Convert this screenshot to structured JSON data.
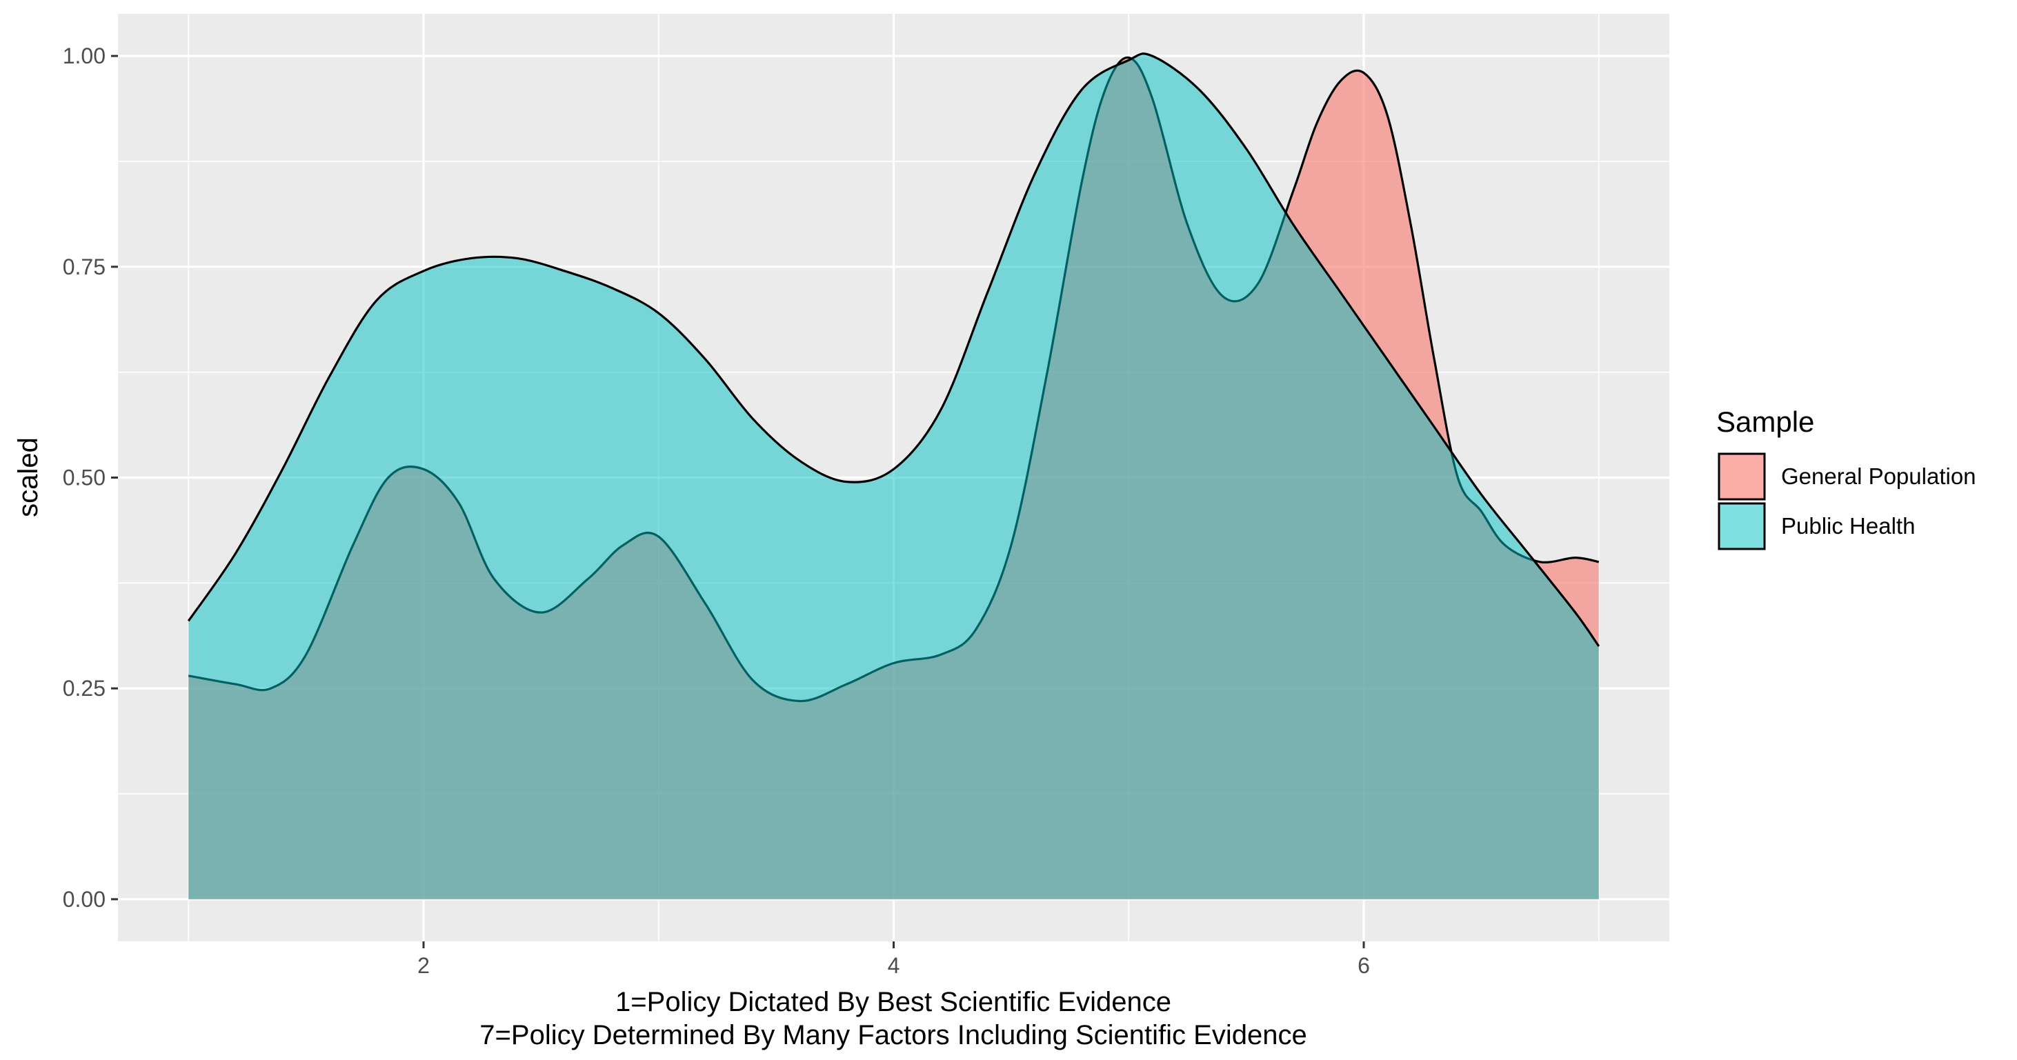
{
  "chart_data": {
    "type": "area",
    "chart_kind": "density",
    "title": "",
    "xlabel_lines": [
      "1=Policy Dictated By Best Scientific Evidence",
      "7=Policy Determined By Many Factors Including Scientific Evidence"
    ],
    "ylabel": "scaled",
    "xlim": [
      0.7,
      7.3
    ],
    "ylim": [
      -0.05,
      1.05
    ],
    "x_ticks": [
      2,
      4,
      6
    ],
    "y_ticks": [
      0,
      0.25,
      0.5,
      0.75,
      1.0
    ],
    "y_tick_labels": [
      "0.00",
      "0.25",
      "0.50",
      "0.75",
      "1.00"
    ],
    "grid": true,
    "legend": {
      "title": "Sample",
      "position": "right",
      "labels": [
        "General Population",
        "Public Health"
      ]
    },
    "series": [
      {
        "name": "General Population",
        "color": "#F8766D",
        "opacity": 0.6,
        "x": [
          1.0,
          1.2,
          1.35,
          1.5,
          1.7,
          1.85,
          2.0,
          2.15,
          2.3,
          2.5,
          2.7,
          2.85,
          3.0,
          3.2,
          3.4,
          3.6,
          3.8,
          4.0,
          4.2,
          4.35,
          4.5,
          4.65,
          4.8,
          4.9,
          5.0,
          5.1,
          5.25,
          5.4,
          5.55,
          5.7,
          5.8,
          5.9,
          6.0,
          6.1,
          6.2,
          6.3,
          6.4,
          6.5,
          6.6,
          6.75,
          6.9,
          7.0
        ],
        "values": [
          0.265,
          0.255,
          0.25,
          0.29,
          0.42,
          0.5,
          0.51,
          0.47,
          0.38,
          0.34,
          0.38,
          0.42,
          0.43,
          0.35,
          0.26,
          0.235,
          0.255,
          0.28,
          0.29,
          0.32,
          0.42,
          0.62,
          0.85,
          0.96,
          0.998,
          0.95,
          0.8,
          0.715,
          0.73,
          0.84,
          0.92,
          0.97,
          0.98,
          0.93,
          0.8,
          0.64,
          0.5,
          0.46,
          0.42,
          0.4,
          0.405,
          0.4
        ]
      },
      {
        "name": "Public Health",
        "color": "#00BFC4",
        "opacity": 0.5,
        "x": [
          1.0,
          1.2,
          1.4,
          1.6,
          1.8,
          2.0,
          2.2,
          2.4,
          2.6,
          2.8,
          3.0,
          3.2,
          3.4,
          3.6,
          3.8,
          4.0,
          4.2,
          4.4,
          4.6,
          4.8,
          5.0,
          5.1,
          5.3,
          5.5,
          5.7,
          5.9,
          6.1,
          6.3,
          6.5,
          6.7,
          6.9,
          7.0
        ],
        "values": [
          0.33,
          0.41,
          0.51,
          0.62,
          0.71,
          0.745,
          0.76,
          0.76,
          0.745,
          0.725,
          0.695,
          0.64,
          0.57,
          0.52,
          0.495,
          0.51,
          0.58,
          0.72,
          0.86,
          0.96,
          0.995,
          1.0,
          0.96,
          0.89,
          0.8,
          0.72,
          0.64,
          0.56,
          0.48,
          0.41,
          0.34,
          0.3
        ]
      }
    ]
  }
}
